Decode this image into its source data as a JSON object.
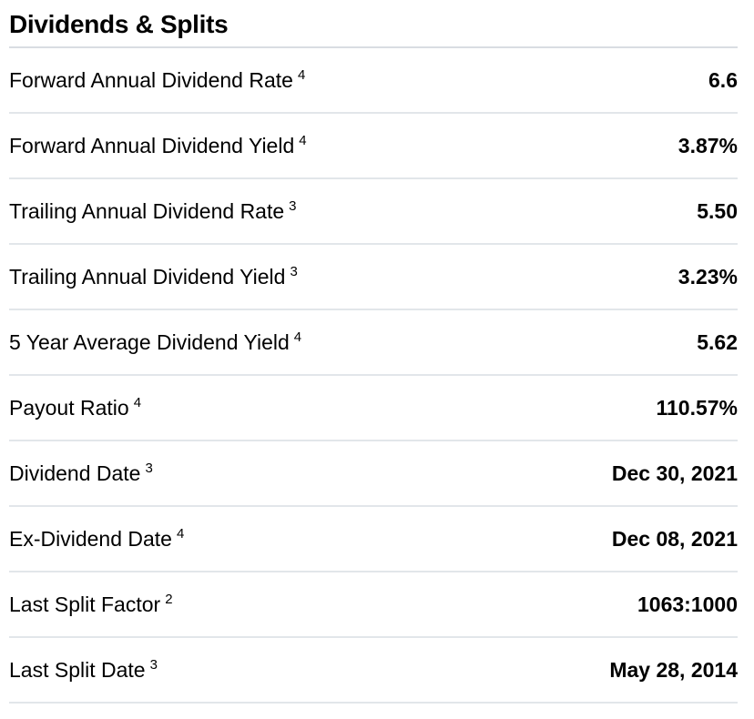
{
  "section": {
    "title": "Dividends & Splits"
  },
  "table": {
    "rows": [
      {
        "label": "Forward Annual Dividend Rate",
        "footnote": "4",
        "value": "6.6"
      },
      {
        "label": "Forward Annual Dividend Yield",
        "footnote": "4",
        "value": "3.87%"
      },
      {
        "label": "Trailing Annual Dividend Rate",
        "footnote": "3",
        "value": "5.50"
      },
      {
        "label": "Trailing Annual Dividend Yield",
        "footnote": "3",
        "value": "3.23%"
      },
      {
        "label": "5 Year Average Dividend Yield",
        "footnote": "4",
        "value": "5.62"
      },
      {
        "label": "Payout Ratio",
        "footnote": "4",
        "value": "110.57%"
      },
      {
        "label": "Dividend Date",
        "footnote": "3",
        "value": "Dec 30, 2021"
      },
      {
        "label": "Ex-Dividend Date",
        "footnote": "4",
        "value": "Dec 08, 2021"
      },
      {
        "label": "Last Split Factor",
        "footnote": "2",
        "value": "1063:1000"
      },
      {
        "label": "Last Split Date",
        "footnote": "3",
        "value": "May 28, 2014"
      }
    ]
  },
  "colors": {
    "background": "#ffffff",
    "text": "#000000",
    "row_divider": "#e2e6ea",
    "header_divider": "#d9dde2"
  }
}
